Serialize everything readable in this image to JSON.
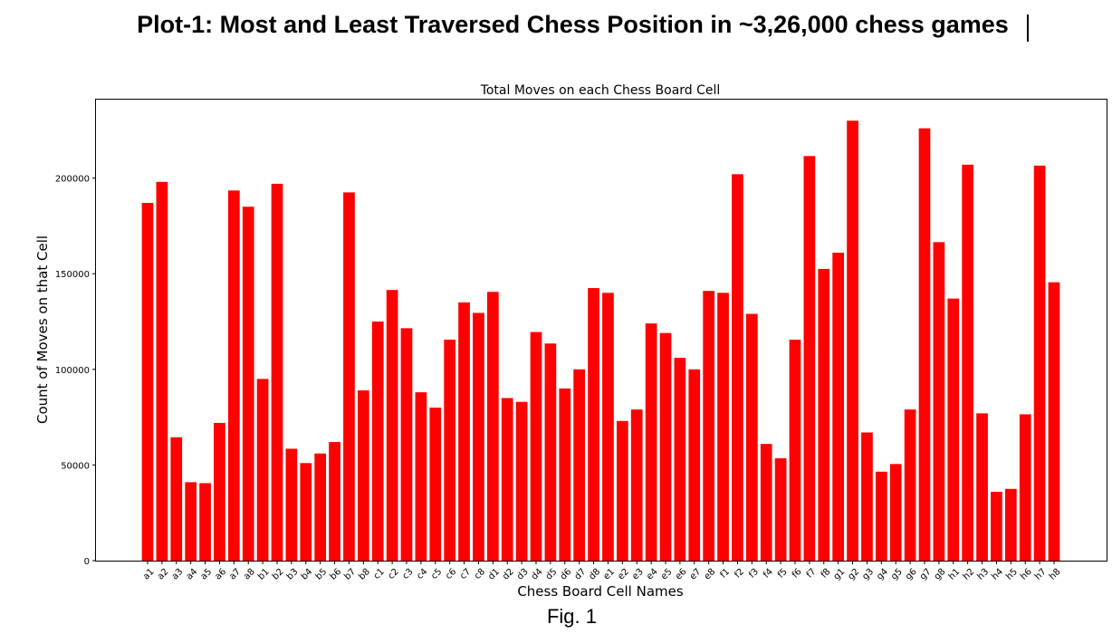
{
  "figure": {
    "suptitle": "Plot-1: Most and Least Traversed Chess Position in ~3,26,000 chess games",
    "caption": "Fig. 1"
  },
  "chart_data": {
    "type": "bar",
    "title": "Total Moves on each Chess Board Cell",
    "xlabel": "Chess Board Cell Names",
    "ylabel": "Count of Moves on that Cell",
    "bar_color": "#ff0000",
    "ylim": [
      0,
      241000
    ],
    "yticks": [
      0,
      50000,
      100000,
      150000,
      200000
    ],
    "grid": false,
    "categories": [
      "a1",
      "a2",
      "a3",
      "a4",
      "a5",
      "a6",
      "a7",
      "a8",
      "b1",
      "b2",
      "b3",
      "b4",
      "b5",
      "b6",
      "b7",
      "b8",
      "c1",
      "c2",
      "c3",
      "c4",
      "c5",
      "c6",
      "c7",
      "c8",
      "d1",
      "d2",
      "d3",
      "d4",
      "d5",
      "d6",
      "d7",
      "d8",
      "e1",
      "e2",
      "e3",
      "e4",
      "e5",
      "e6",
      "e7",
      "e8",
      "f1",
      "f2",
      "f3",
      "f4",
      "f5",
      "f6",
      "f7",
      "f8",
      "g1",
      "g2",
      "g3",
      "g4",
      "g5",
      "g6",
      "g7",
      "g8",
      "h1",
      "h2",
      "h3",
      "h4",
      "h5",
      "h6",
      "h7",
      "h8"
    ],
    "values": [
      187000,
      198000,
      64500,
      41000,
      40500,
      72000,
      193500,
      185000,
      95000,
      197000,
      58500,
      51000,
      56000,
      62000,
      192500,
      89000,
      125000,
      141500,
      121500,
      88000,
      80000,
      115500,
      135000,
      129500,
      140500,
      85000,
      83000,
      119500,
      113500,
      90000,
      100000,
      142500,
      140000,
      73000,
      79000,
      124000,
      119000,
      106000,
      100000,
      141000,
      140000,
      202000,
      129000,
      61000,
      53500,
      115500,
      211500,
      152500,
      161000,
      230000,
      67000,
      46500,
      50500,
      79000,
      226000,
      166500,
      137000,
      207000,
      77000,
      36000,
      37500,
      76500,
      206500,
      145500
    ]
  }
}
